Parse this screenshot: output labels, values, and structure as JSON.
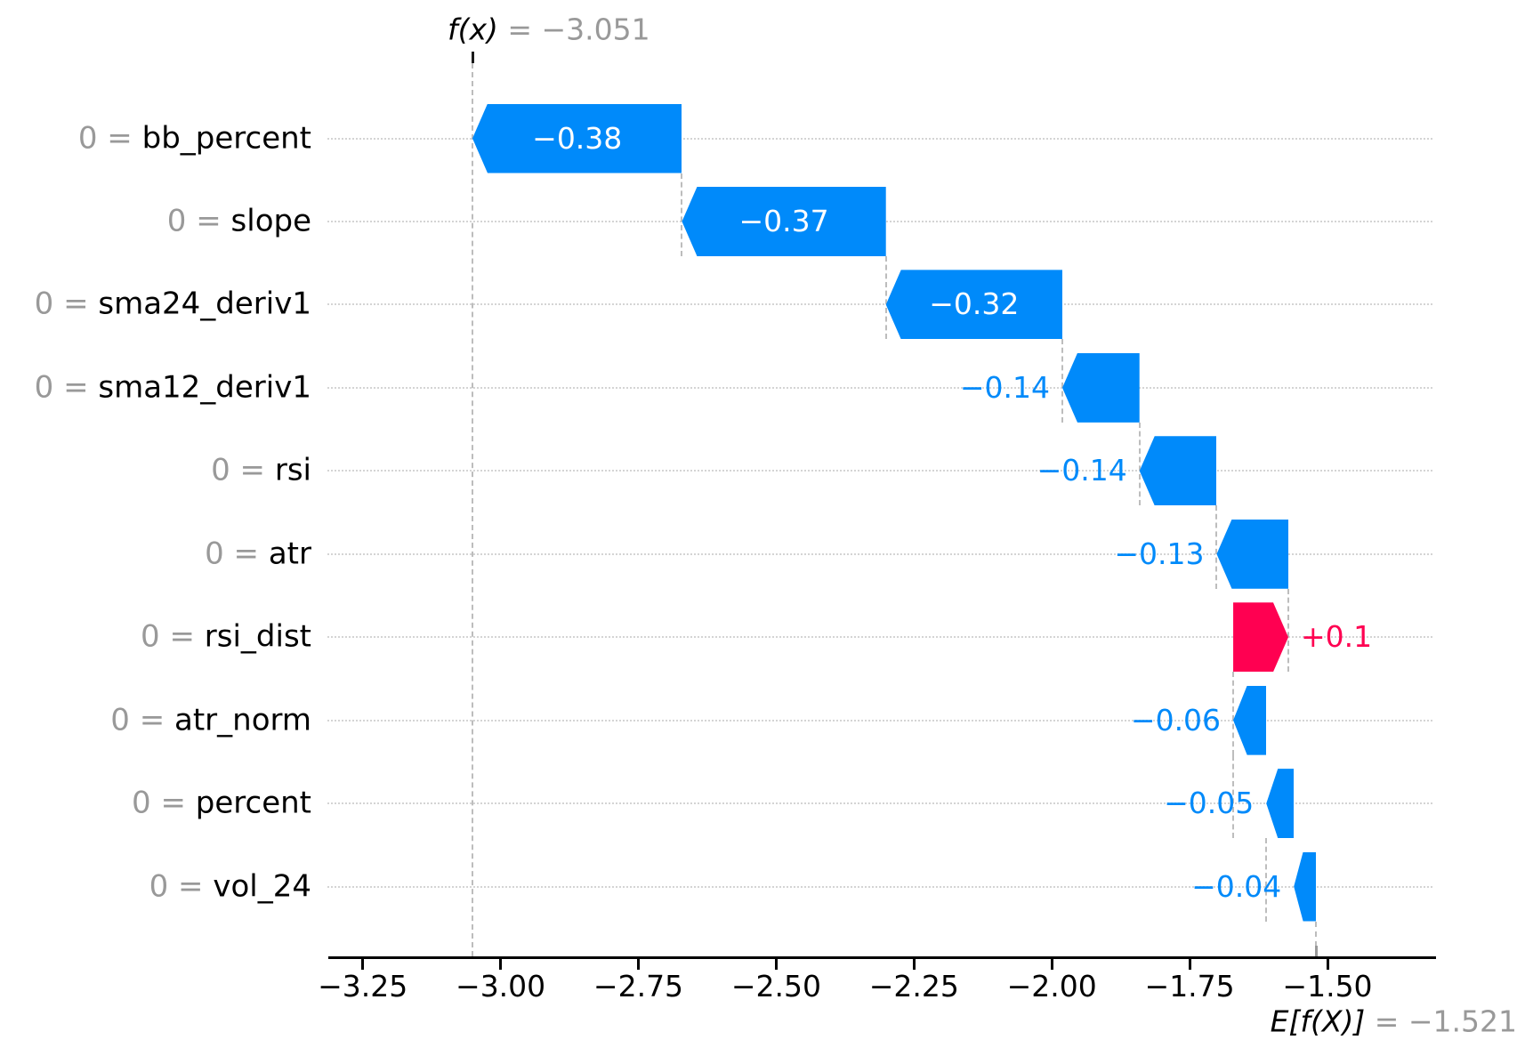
{
  "header": {
    "fx_name": "f(x)",
    "fx_rest": " = −3.051"
  },
  "footer": {
    "ef_name": "E[f(X)]",
    "ef_rest": " = −1.521"
  },
  "colors": {
    "positive": "#ff0051",
    "negative": "#008afa",
    "bar_label_inside": "#ffffff",
    "muted_text": "#999999",
    "dashed_line": "#bdbdbd",
    "grid_dotted": "#d4d4d4",
    "axis": "#000000"
  },
  "chart_data": {
    "type": "waterfall",
    "title": "f(x) = −3.051",
    "base_label": "E[f(X)] = −1.521",
    "fx_value": -3.051,
    "base_value": -1.521,
    "xlim": [
      -3.31,
      -1.3
    ],
    "grid": "horizontal dotted rows, no legend",
    "x_ticks": [
      {
        "value": -3.25,
        "label": "−3.25"
      },
      {
        "value": -3.0,
        "label": "−3.00"
      },
      {
        "value": -2.75,
        "label": "−2.75"
      },
      {
        "value": -2.5,
        "label": "−2.50"
      },
      {
        "value": -2.25,
        "label": "−2.25"
      },
      {
        "value": -2.0,
        "label": "−2.00"
      },
      {
        "value": -1.75,
        "label": "−1.75"
      },
      {
        "value": -1.5,
        "label": "−1.50"
      }
    ],
    "features": [
      {
        "name": "bb_percent",
        "tick_prefix": "0 = ",
        "shap": -0.38,
        "label": "−0.38",
        "from": -2.671,
        "to": -3.051,
        "label_inside": true
      },
      {
        "name": "slope",
        "tick_prefix": "0 = ",
        "shap": -0.37,
        "label": "−0.37",
        "from": -2.301,
        "to": -2.671,
        "label_inside": true
      },
      {
        "name": "sma24_deriv1",
        "tick_prefix": "0 = ",
        "shap": -0.32,
        "label": "−0.32",
        "from": -1.981,
        "to": -2.301,
        "label_inside": true
      },
      {
        "name": "sma12_deriv1",
        "tick_prefix": "0 = ",
        "shap": -0.14,
        "label": "−0.14",
        "from": -1.841,
        "to": -1.981,
        "label_inside": false
      },
      {
        "name": "rsi",
        "tick_prefix": "0 = ",
        "shap": -0.14,
        "label": "−0.14",
        "from": -1.701,
        "to": -1.841,
        "label_inside": false
      },
      {
        "name": "atr",
        "tick_prefix": "0 = ",
        "shap": -0.13,
        "label": "−0.13",
        "from": -1.571,
        "to": -1.701,
        "label_inside": false
      },
      {
        "name": "rsi_dist",
        "tick_prefix": "0 = ",
        "shap": 0.1,
        "label": "+0.1",
        "from": -1.671,
        "to": -1.571,
        "label_inside": false
      },
      {
        "name": "atr_norm",
        "tick_prefix": "0 = ",
        "shap": -0.06,
        "label": "−0.06",
        "from": -1.671,
        "to": -1.611,
        "label_inside": false
      },
      {
        "name": "percent",
        "tick_prefix": "0 = ",
        "shap": -0.05,
        "label": "−0.05",
        "from": -1.611,
        "to": -1.561,
        "label_inside": false
      },
      {
        "name": "vol_24",
        "tick_prefix": "0 = ",
        "shap": -0.04,
        "label": "−0.04",
        "from": -1.561,
        "to": -1.521,
        "label_inside": false
      }
    ]
  }
}
